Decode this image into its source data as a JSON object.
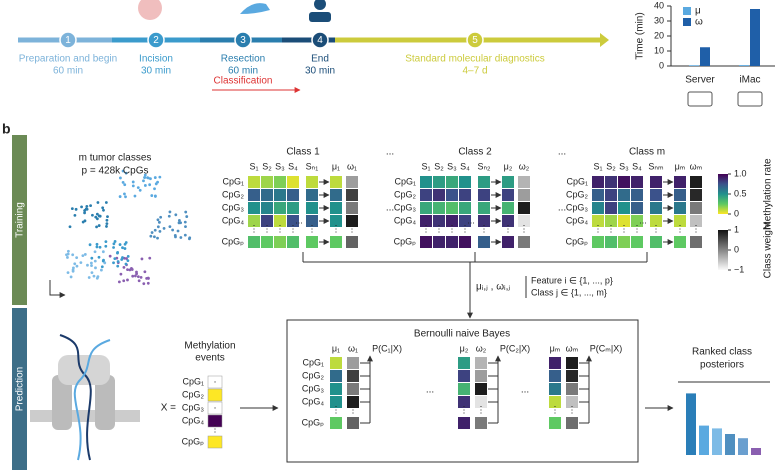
{
  "timeline": {
    "steps": [
      {
        "number": "1",
        "label": "Preparation and begin",
        "duration": "60 min",
        "color": "#7db3da"
      },
      {
        "number": "2",
        "label": "Incision",
        "duration": "30 min",
        "color": "#3b9bcc"
      },
      {
        "number": "3",
        "label": "Resection",
        "duration": "60 min",
        "color": "#2a7eae"
      },
      {
        "number": "4",
        "label": "End",
        "duration": "30 min",
        "color": "#1b4d78"
      },
      {
        "number": "5",
        "label": "Standard molecular diagnostics",
        "duration": "4–7 d",
        "color": "#cccb3c"
      }
    ],
    "classification": "Classification"
  },
  "chart_data": {
    "type": "bar",
    "ylabel": "Time (min)",
    "categories": [
      "Server",
      "iMac"
    ],
    "series": [
      {
        "name": "μ",
        "color": "#5aa9e0",
        "values": [
          0.5,
          0.6
        ]
      },
      {
        "name": "ω",
        "color": "#1f5fa8",
        "values": [
          12.5,
          38
        ]
      }
    ],
    "ylim": [
      0,
      40
    ],
    "yticks": [
      0,
      10,
      20,
      30,
      40
    ],
    "legend": "upper left"
  },
  "panel_label": "b",
  "training": {
    "label": "Training",
    "note": [
      "m tumor classes",
      "p = 428k CpGs"
    ],
    "rows": [
      "CpG₁",
      "CpG₂",
      "CpG₃",
      "CpG₄",
      "CpGₚ"
    ],
    "vdots": "⋮",
    "ellipsis": "...",
    "classes": [
      {
        "title": "Class 1",
        "headers": [
          "S₁",
          "S₂",
          "S₃",
          "S₄",
          "Sₙ₁",
          "μ₁",
          "ω₁"
        ],
        "samples": [
          [
            0.9,
            0.85,
            0.8,
            0.95,
            0.9
          ],
          [
            0.3,
            0.35,
            0.4,
            0.3,
            0.35
          ],
          [
            0.5,
            0.45,
            0.6,
            0.55,
            0.5
          ],
          [
            0.85,
            0.2,
            0.9,
            0.25,
            0.3
          ],
          [
            0.7,
            0.75,
            0.8,
            0.7,
            0.75
          ]
        ],
        "mu": [
          0.9,
          0.35,
          0.5,
          0.5,
          0.75
        ],
        "omega": [
          -0.2,
          0.6,
          0.1,
          0.9,
          0.3
        ]
      },
      {
        "title": "Class 2",
        "headers": [
          "S₁",
          "S₂",
          "S₃",
          "S₄",
          "Sₙ₂",
          "μ₂",
          "ω₂"
        ],
        "samples": [
          [
            0.5,
            0.55,
            0.6,
            0.5,
            0.55
          ],
          [
            0.2,
            0.15,
            0.25,
            0.2,
            0.2
          ],
          [
            0.6,
            0.65,
            0.7,
            0.6,
            0.6
          ],
          [
            0.1,
            0.15,
            0.1,
            0.2,
            0.15
          ],
          [
            0.05,
            0.1,
            0.1,
            0.05,
            0.3
          ]
        ],
        "mu": [
          0.55,
          0.2,
          0.65,
          0.15,
          0.1
        ],
        "omega": [
          -0.4,
          -0.2,
          0.9,
          -0.8,
          0.1
        ]
      },
      {
        "title": "Class m",
        "headers": [
          "S₁",
          "S₂",
          "S₃",
          "S₄",
          "Sₙₘ",
          "μₘ",
          "ωₘ"
        ],
        "samples": [
          [
            0.1,
            0.15,
            0.05,
            0.1,
            0.1
          ],
          [
            0.3,
            0.2,
            0.35,
            0.3,
            0.25
          ],
          [
            0.45,
            0.2,
            0.5,
            0.3,
            0.4
          ],
          [
            0.9,
            0.85,
            0.95,
            0.8,
            0.9
          ],
          [
            0.75,
            0.7,
            0.8,
            0.75,
            0.7
          ]
        ],
        "mu": [
          0.1,
          0.3,
          0.4,
          0.9,
          0.75
        ],
        "omega": [
          0.9,
          0.8,
          0.1,
          -0.5,
          0.2
        ]
      }
    ],
    "methylation_scale": {
      "label": "Methylation rate",
      "range": [
        0,
        1
      ],
      "ticks": [
        {
          "value": 1,
          "label": "1.0"
        },
        0.5,
        0
      ]
    },
    "weight_scale": {
      "label": "Class weight",
      "range": [
        -1,
        1
      ],
      "ticks": [
        1,
        0,
        {
          "value": -1,
          "label": "−1"
        }
      ]
    },
    "parameters": {
      "symbol": "μᵢ,ⱼ , ωᵢ,ⱼ",
      "lines": [
        "Feature i ∈ {1, ..., p}",
        "Class j ∈ {1, ..., m}"
      ]
    }
  },
  "prediction": {
    "label": "Prediction",
    "events_title": [
      "Methylation",
      "events"
    ],
    "x_label": "X =",
    "events": [
      null,
      1,
      null,
      0,
      1
    ],
    "unknown_mark": "·",
    "model_title": "Bernoulli naive Bayes",
    "posterior_labels": [
      "P(C₁|X)",
      "P(C₂|X)",
      "P(Cₘ|X)"
    ],
    "ranked_title": [
      "Ranked class",
      "posteriors"
    ],
    "posteriors": [
      0.88,
      0.42,
      0.38,
      0.3,
      0.24,
      0.1
    ],
    "posterior_colors": [
      "#2a7eb8",
      "#5aa9e0",
      "#7dbbe6",
      "#4f8fc0",
      "#6a9fcf",
      "#8a5fb0"
    ]
  }
}
